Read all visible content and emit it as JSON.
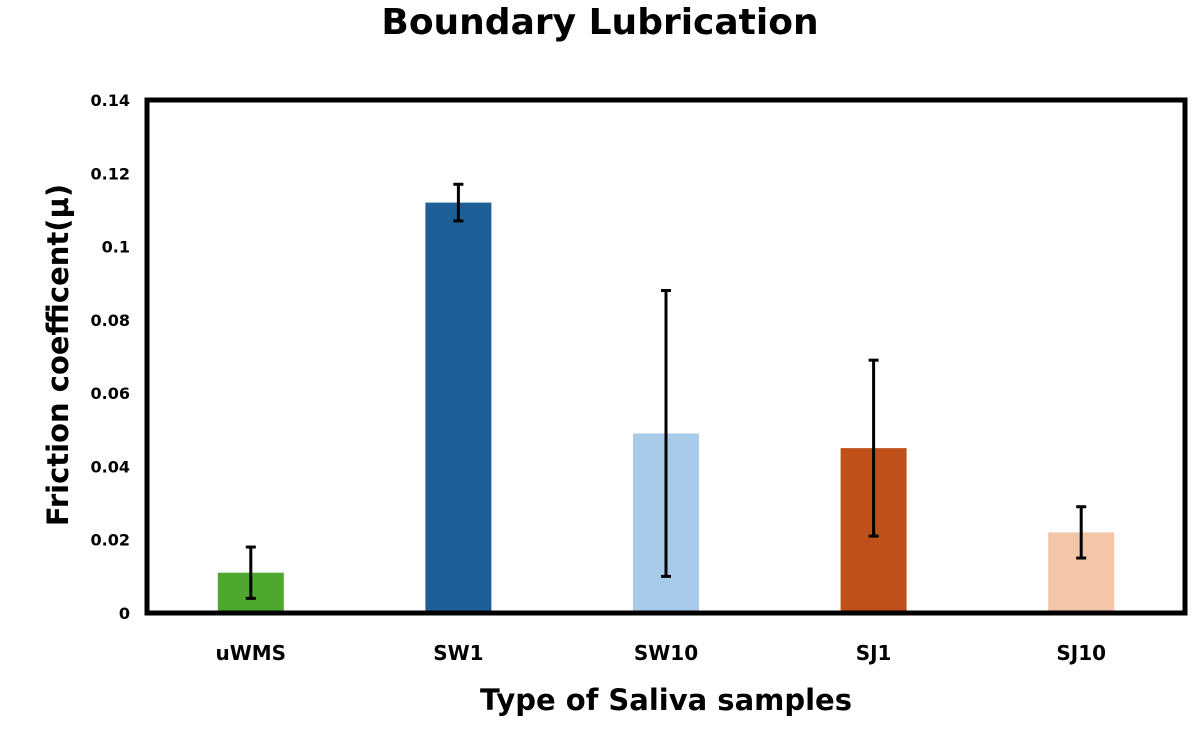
{
  "chart_data": {
    "type": "bar",
    "title": "Boundary Lubrication",
    "xlabel": "Type of Saliva samples",
    "ylabel": "Friction coefficent(µ)",
    "categories": [
      "uWMS",
      "SW1",
      "SW10",
      "SJ1",
      "SJ10"
    ],
    "values": [
      0.011,
      0.112,
      0.049,
      0.045,
      0.022
    ],
    "error_low": [
      0.004,
      0.107,
      0.01,
      0.021,
      0.015
    ],
    "error_high": [
      0.018,
      0.117,
      0.088,
      0.069,
      0.029
    ],
    "colors": [
      "#4ea72e",
      "#1f5f98",
      "#a9cbea",
      "#c0501a",
      "#f4c6a9"
    ],
    "ylim": [
      0,
      0.14
    ],
    "yticks": [
      "0",
      "0.02",
      "0.04",
      "0.06",
      "0.08",
      "0.1",
      "0.12",
      "0.14"
    ],
    "grid": false,
    "legend": "none"
  }
}
